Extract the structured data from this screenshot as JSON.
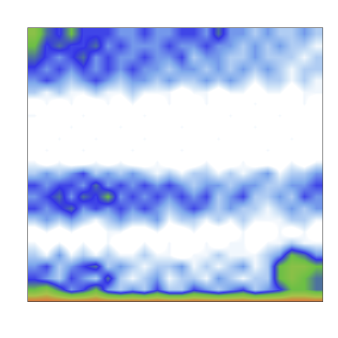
{
  "chart_data": {
    "type": "heatmap",
    "x": [
      0,
      1,
      2,
      3,
      4,
      5,
      6,
      7,
      8,
      9,
      10,
      11,
      12,
      13,
      14,
      15,
      16,
      17,
      18,
      19,
      20,
      21,
      22,
      23
    ],
    "y": [
      0,
      1,
      2,
      3,
      4,
      5,
      6,
      7,
      8,
      9,
      10,
      11,
      12,
      13,
      14,
      15,
      16,
      17,
      18,
      19,
      20,
      21,
      22,
      23
    ],
    "xlim": [
      -0.5,
      23.5
    ],
    "ylim": [
      0,
      23.5
    ],
    "zlim": [
      0,
      10
    ],
    "tick_labels": false,
    "grid": false,
    "z": [
      [
        10,
        10,
        10,
        10,
        10,
        10,
        10,
        10,
        10,
        10,
        10,
        10,
        10,
        10,
        10,
        10,
        10,
        10,
        10,
        10,
        10,
        10,
        10,
        10
      ],
      [
        6,
        7,
        5,
        3,
        4,
        6,
        3,
        2,
        3,
        2,
        4,
        2,
        2,
        4,
        3,
        2,
        3,
        4,
        2,
        3,
        4,
        6,
        6,
        5
      ],
      [
        4,
        3,
        2,
        4,
        3,
        2,
        5,
        2,
        1,
        2,
        3,
        1,
        2,
        2,
        1,
        3,
        2,
        1,
        2,
        2,
        6,
        7,
        6,
        5
      ],
      [
        3,
        4,
        2,
        3,
        4,
        5,
        2,
        3,
        2,
        1,
        2,
        2,
        3,
        1,
        2,
        1,
        2,
        3,
        1,
        2,
        6,
        7,
        7,
        6
      ],
      [
        2,
        1,
        3,
        1,
        2,
        1,
        2,
        1,
        1,
        2,
        1,
        1,
        0,
        1,
        1,
        2,
        1,
        1,
        1,
        2,
        3,
        6,
        5,
        3
      ],
      [
        1,
        0,
        1,
        0,
        1,
        0,
        1,
        0,
        0,
        1,
        0,
        1,
        0,
        0,
        1,
        0,
        1,
        1,
        0,
        1,
        1,
        2,
        1,
        1
      ],
      [
        0,
        1,
        0,
        1,
        0,
        0,
        1,
        1,
        0,
        0,
        1,
        0,
        0,
        1,
        0,
        0,
        0,
        1,
        0,
        0,
        1,
        0,
        1,
        0
      ],
      [
        2,
        3,
        2,
        3,
        2,
        1,
        2,
        3,
        2,
        2,
        3,
        1,
        2,
        2,
        1,
        2,
        1,
        2,
        1,
        1,
        1,
        2,
        2,
        1
      ],
      [
        4,
        3,
        4,
        5,
        3,
        4,
        3,
        4,
        3,
        4,
        3,
        2,
        3,
        4,
        3,
        2,
        3,
        2,
        2,
        1,
        2,
        3,
        2,
        3
      ],
      [
        3,
        4,
        5,
        3,
        5,
        4,
        6,
        3,
        4,
        3,
        4,
        3,
        4,
        3,
        4,
        2,
        3,
        4,
        2,
        2,
        3,
        2,
        4,
        3
      ],
      [
        4,
        3,
        4,
        4,
        3,
        5,
        3,
        4,
        3,
        4,
        3,
        4,
        3,
        2,
        3,
        3,
        2,
        3,
        3,
        2,
        2,
        3,
        3,
        4
      ],
      [
        2,
        3,
        2,
        3,
        4,
        2,
        3,
        2,
        3,
        2,
        1,
        2,
        1,
        2,
        2,
        1,
        2,
        1,
        2,
        3,
        1,
        2,
        2,
        3
      ],
      [
        1,
        0,
        1,
        0,
        0,
        1,
        0,
        1,
        0,
        0,
        1,
        0,
        0,
        0,
        1,
        0,
        0,
        1,
        0,
        0,
        0,
        1,
        0,
        1
      ],
      [
        0,
        1,
        0,
        0,
        1,
        0,
        0,
        0,
        1,
        0,
        0,
        0,
        1,
        0,
        0,
        0,
        0,
        0,
        0,
        1,
        0,
        0,
        0,
        0
      ],
      [
        0,
        0,
        1,
        0,
        0,
        1,
        0,
        0,
        0,
        1,
        0,
        0,
        0,
        0,
        0,
        1,
        0,
        0,
        0,
        0,
        0,
        1,
        0,
        0
      ],
      [
        0,
        0,
        0,
        1,
        0,
        0,
        0,
        1,
        0,
        0,
        0,
        0,
        1,
        0,
        0,
        0,
        0,
        0,
        1,
        0,
        0,
        0,
        0,
        0
      ],
      [
        1,
        0,
        0,
        0,
        1,
        0,
        0,
        0,
        0,
        1,
        0,
        0,
        0,
        0,
        0,
        0,
        1,
        0,
        0,
        0,
        1,
        0,
        0,
        0
      ],
      [
        0,
        1,
        0,
        1,
        0,
        0,
        1,
        0,
        1,
        0,
        0,
        1,
        0,
        0,
        1,
        0,
        0,
        0,
        1,
        0,
        0,
        0,
        1,
        0
      ],
      [
        2,
        1,
        2,
        1,
        1,
        2,
        1,
        1,
        2,
        1,
        1,
        1,
        0,
        1,
        1,
        0,
        1,
        1,
        0,
        1,
        1,
        0,
        1,
        1
      ],
      [
        3,
        4,
        3,
        2,
        3,
        4,
        3,
        2,
        3,
        3,
        2,
        3,
        2,
        2,
        3,
        2,
        3,
        2,
        1,
        2,
        2,
        1,
        2,
        1
      ],
      [
        4,
        3,
        4,
        3,
        4,
        3,
        4,
        3,
        4,
        3,
        3,
        2,
        3,
        3,
        2,
        3,
        2,
        3,
        2,
        3,
        2,
        1,
        2,
        2
      ],
      [
        5,
        4,
        3,
        4,
        5,
        3,
        4,
        3,
        3,
        4,
        3,
        3,
        4,
        2,
        3,
        3,
        2,
        2,
        3,
        2,
        2,
        2,
        1,
        2
      ],
      [
        6,
        4,
        5,
        4,
        4,
        5,
        3,
        4,
        3,
        3,
        3,
        4,
        3,
        3,
        4,
        3,
        3,
        2,
        3,
        2,
        3,
        2,
        2,
        1
      ],
      [
        7,
        5,
        4,
        6,
        4,
        4,
        4,
        3,
        3,
        4,
        3,
        3,
        4,
        4,
        3,
        5,
        3,
        3,
        2,
        3,
        2,
        2,
        3,
        2
      ]
    ]
  }
}
